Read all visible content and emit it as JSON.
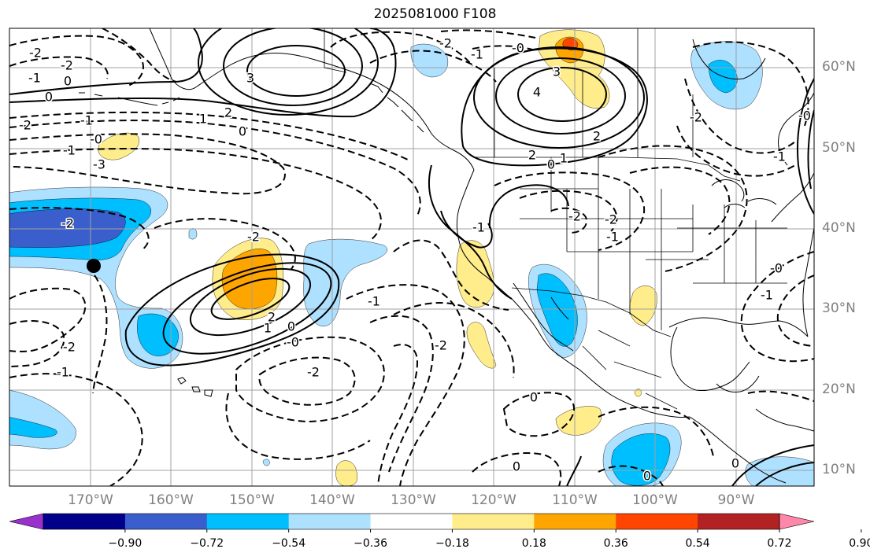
{
  "title": "2025081000 F108",
  "lat_labels": [
    "60°N",
    "50°N",
    "40°N",
    "30°N",
    "20°N",
    "10°N"
  ],
  "lon_labels": [
    "170°W",
    "160°W",
    "150°W",
    "140°W",
    "130°W",
    "120°W",
    "110°W",
    "100°W",
    "90°W"
  ],
  "colorbar": {
    "tick_labels": [
      "−0.90",
      "−0.72",
      "−0.54",
      "−0.36",
      "−0.18",
      "0.18",
      "0.36",
      "0.54",
      "0.72",
      "0.90"
    ],
    "colors": [
      "#9932cc",
      "#00008b",
      "#3a5fcd",
      "#00bfff",
      "#aee0ff",
      "#ffffff",
      "#ffec8b",
      "#ffa500",
      "#ff4500",
      "#b22222",
      "#ff88aa"
    ]
  },
  "fill_colors": {
    "neg_light": "#aee0ff",
    "neg_mid": "#00bfff",
    "neg_dark": "#3a5fcd",
    "pos_light": "#ffec8b",
    "pos_mid": "#ffa500",
    "pos_dark": "#ff4500"
  },
  "contour_labels": [
    {
      "text": "-2",
      "lx": 45,
      "ly": 68
    },
    {
      "text": "-2",
      "lx": 85,
      "ly": 84
    },
    {
      "text": "-1",
      "lx": 44,
      "ly": 100
    },
    {
      "text": "0",
      "lx": 86,
      "ly": 104
    },
    {
      "text": "0",
      "lx": 62,
      "ly": 124
    },
    {
      "text": "3",
      "lx": 318,
      "ly": 100
    },
    {
      "text": "2",
      "lx": 290,
      "ly": 144
    },
    {
      "text": "1",
      "lx": 258,
      "ly": 152
    },
    {
      "text": "0",
      "lx": 308,
      "ly": 168
    },
    {
      "text": "-2",
      "lx": 32,
      "ly": 160
    },
    {
      "text": "-1",
      "lx": 110,
      "ly": 154
    },
    {
      "text": "-1",
      "lx": 88,
      "ly": 192
    },
    {
      "text": "-0",
      "lx": 122,
      "ly": 178
    },
    {
      "text": "-3",
      "lx": 126,
      "ly": 210
    },
    {
      "text": "-2",
      "lx": 86,
      "ly": 285
    },
    {
      "text": "-2",
      "lx": 322,
      "ly": 302
    },
    {
      "text": "2",
      "lx": 345,
      "ly": 404
    },
    {
      "text": "1",
      "lx": 340,
      "ly": 418
    },
    {
      "text": "0",
      "lx": 370,
      "ly": 416
    },
    {
      "text": "-0",
      "lx": 372,
      "ly": 436
    },
    {
      "text": "-2",
      "lx": 398,
      "ly": 474
    },
    {
      "text": "-1",
      "lx": 475,
      "ly": 384
    },
    {
      "text": "-2",
      "lx": 88,
      "ly": 442
    },
    {
      "text": "-1",
      "lx": 80,
      "ly": 474
    },
    {
      "text": "-2",
      "lx": 566,
      "ly": 56
    },
    {
      "text": "-1",
      "lx": 606,
      "ly": 70
    },
    {
      "text": "-0",
      "lx": 658,
      "ly": 62
    },
    {
      "text": "3",
      "lx": 707,
      "ly": 92
    },
    {
      "text": "4",
      "lx": 682,
      "ly": 118
    },
    {
      "text": "2",
      "lx": 758,
      "ly": 174
    },
    {
      "text": "2",
      "lx": 676,
      "ly": 198
    },
    {
      "text": "0",
      "lx": 700,
      "ly": 210
    },
    {
      "text": "1",
      "lx": 716,
      "ly": 202
    },
    {
      "text": "-2",
      "lx": 730,
      "ly": 276
    },
    {
      "text": "-2",
      "lx": 776,
      "ly": 280
    },
    {
      "text": "-1",
      "lx": 778,
      "ly": 302
    },
    {
      "text": "-1",
      "lx": 608,
      "ly": 290
    },
    {
      "text": "-2",
      "lx": 560,
      "ly": 440
    },
    {
      "text": "0",
      "lx": 678,
      "ly": 506
    },
    {
      "text": "0",
      "lx": 656,
      "ly": 594
    },
    {
      "text": "0",
      "lx": 822,
      "ly": 606
    },
    {
      "text": "0",
      "lx": 934,
      "ly": 590
    },
    {
      "text": "-2",
      "lx": 884,
      "ly": 150
    },
    {
      "text": "-1",
      "lx": 990,
      "ly": 200
    },
    {
      "text": "-0",
      "lx": 1022,
      "ly": 148
    },
    {
      "text": "-1",
      "lx": 974,
      "ly": 376
    },
    {
      "text": "-0",
      "lx": 986,
      "ly": 342
    }
  ],
  "markers": [
    {
      "name": "forecast-point",
      "lx": 119,
      "ly": 338
    }
  ]
}
